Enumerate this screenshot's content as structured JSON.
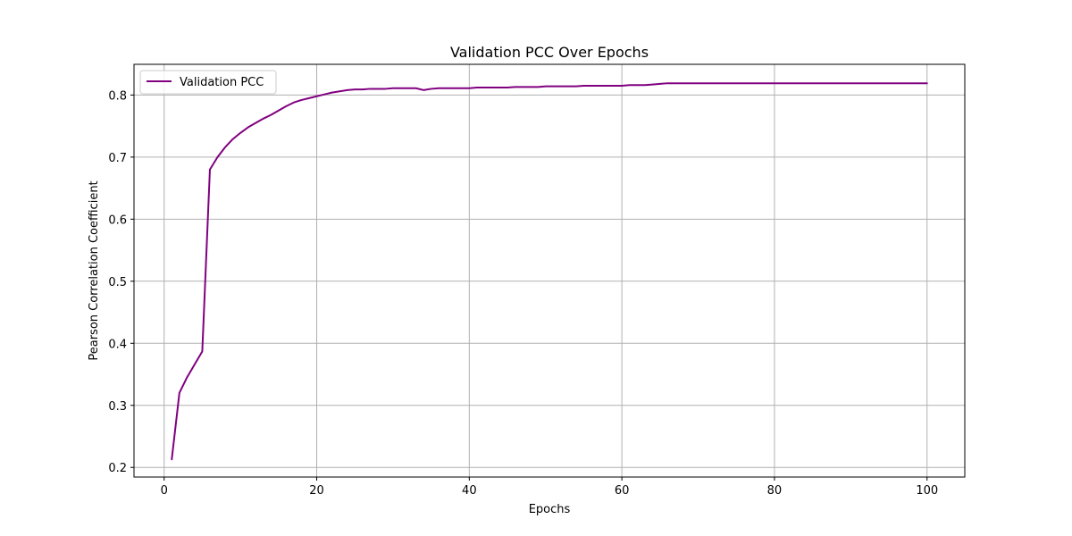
{
  "chart_data": {
    "type": "line",
    "title": "Validation PCC Over Epochs",
    "xlabel": "Epochs",
    "ylabel": "Pearson Correlation Coefficient",
    "xlim": [
      -3.95,
      104.95
    ],
    "ylim": [
      0.1845,
      0.8495
    ],
    "xticks": [
      0,
      20,
      40,
      60,
      80,
      100
    ],
    "yticks": [
      0.2,
      0.3,
      0.4,
      0.5,
      0.6,
      0.7,
      0.8
    ],
    "grid": true,
    "legend_position": "upper left",
    "series": [
      {
        "name": "Validation PCC",
        "color": "#800080",
        "x": [
          1,
          2,
          3,
          4,
          5,
          6,
          7,
          8,
          9,
          10,
          11,
          12,
          13,
          14,
          15,
          16,
          17,
          18,
          19,
          20,
          21,
          22,
          23,
          24,
          25,
          26,
          27,
          28,
          29,
          30,
          31,
          32,
          33,
          34,
          35,
          36,
          37,
          38,
          39,
          40,
          41,
          42,
          43,
          44,
          45,
          46,
          47,
          48,
          49,
          50,
          51,
          52,
          53,
          54,
          55,
          56,
          57,
          58,
          59,
          60,
          61,
          62,
          63,
          64,
          65,
          66,
          67,
          68,
          69,
          70,
          71,
          72,
          73,
          74,
          75,
          76,
          77,
          78,
          79,
          80,
          81,
          82,
          83,
          84,
          85,
          86,
          87,
          88,
          89,
          90,
          91,
          92,
          93,
          94,
          95,
          96,
          97,
          98,
          99,
          100
        ],
        "y": [
          0.213,
          0.32,
          0.345,
          0.366,
          0.387,
          0.68,
          0.7,
          0.716,
          0.729,
          0.739,
          0.748,
          0.755,
          0.762,
          0.768,
          0.775,
          0.782,
          0.788,
          0.792,
          0.795,
          0.798,
          0.801,
          0.804,
          0.806,
          0.808,
          0.809,
          0.809,
          0.81,
          0.81,
          0.81,
          0.811,
          0.811,
          0.811,
          0.811,
          0.808,
          0.81,
          0.811,
          0.811,
          0.811,
          0.811,
          0.811,
          0.812,
          0.812,
          0.812,
          0.812,
          0.812,
          0.813,
          0.813,
          0.813,
          0.813,
          0.814,
          0.814,
          0.814,
          0.814,
          0.814,
          0.815,
          0.815,
          0.815,
          0.815,
          0.815,
          0.815,
          0.816,
          0.816,
          0.816,
          0.817,
          0.818,
          0.819,
          0.819,
          0.819,
          0.819,
          0.819,
          0.819,
          0.819,
          0.819,
          0.819,
          0.819,
          0.819,
          0.819,
          0.819,
          0.819,
          0.819,
          0.819,
          0.819,
          0.819,
          0.819,
          0.819,
          0.819,
          0.819,
          0.819,
          0.819,
          0.819,
          0.819,
          0.819,
          0.819,
          0.819,
          0.819,
          0.819,
          0.819,
          0.819,
          0.819,
          0.819
        ]
      }
    ]
  }
}
